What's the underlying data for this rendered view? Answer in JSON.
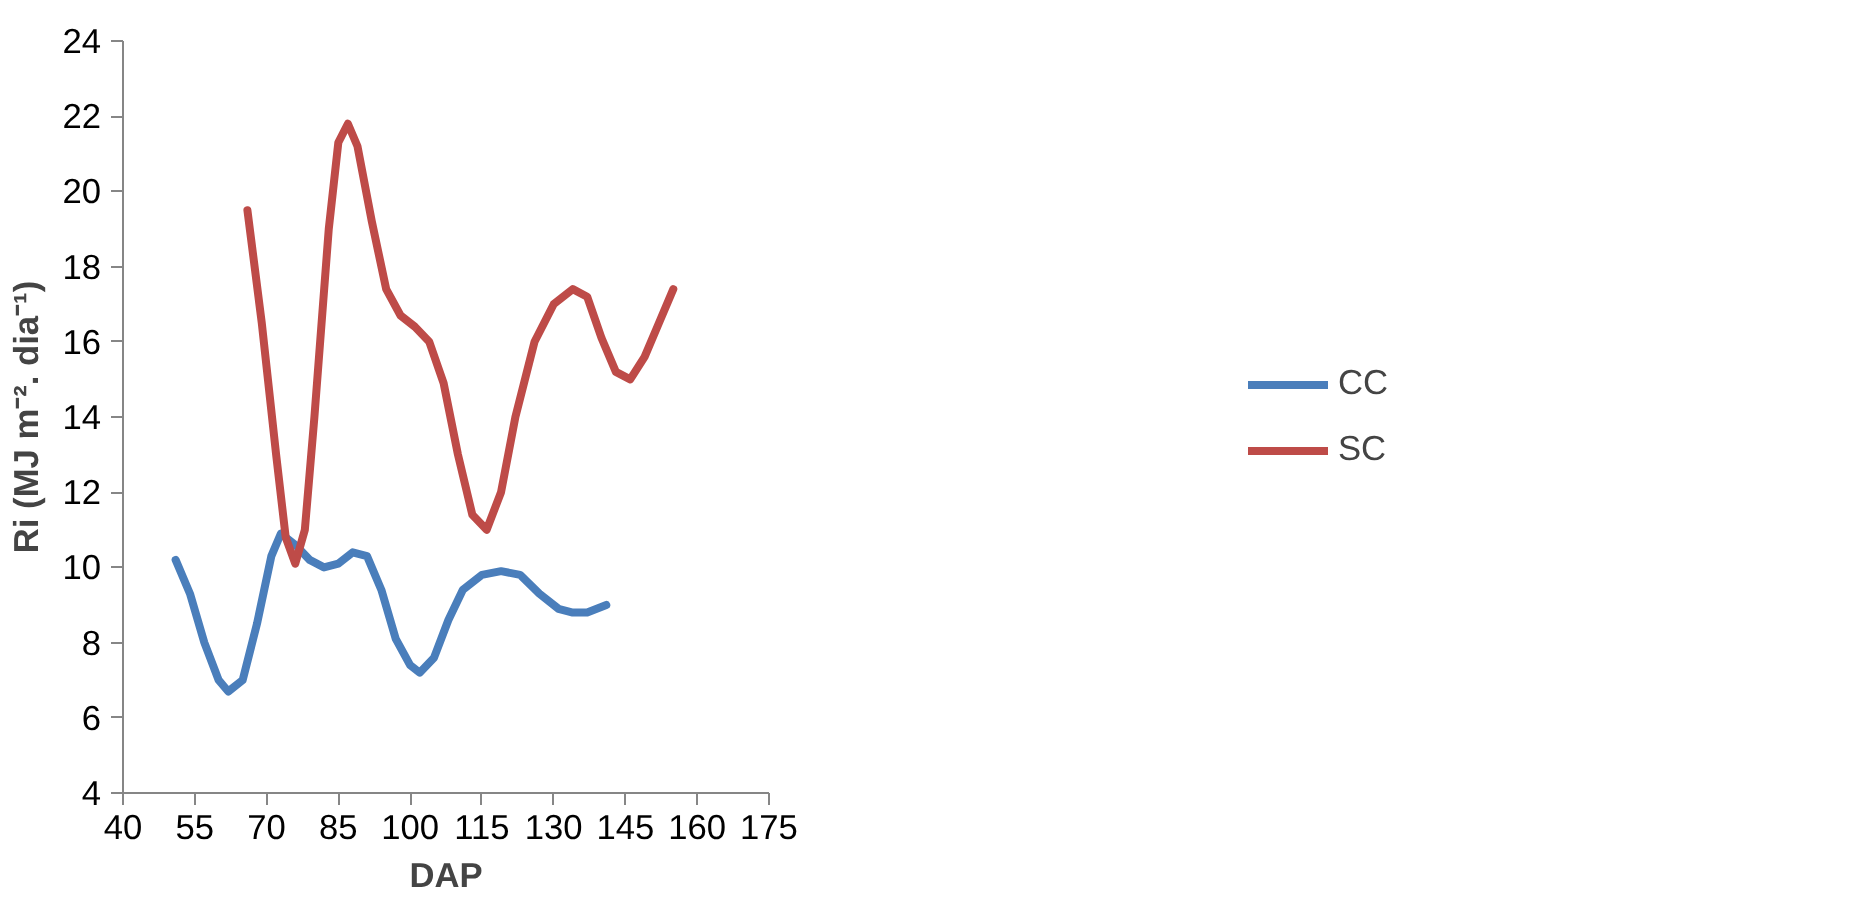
{
  "chart_data": {
    "type": "line",
    "xlabel": "DAP",
    "ylabel": "Ri (MJ m⁻². dia⁻¹)",
    "xlim": [
      40,
      175
    ],
    "xticks": [
      40,
      55,
      70,
      85,
      100,
      115,
      130,
      145,
      160,
      175
    ],
    "ylim": [
      4,
      24
    ],
    "yticks": [
      4,
      6,
      8,
      10,
      12,
      14,
      16,
      18,
      20,
      22,
      24
    ],
    "grid": false,
    "legend": "right",
    "line_style": "solid",
    "marker": "none",
    "series": [
      {
        "name": "CC",
        "color": "#4a7ebb",
        "x": [
          51,
          54,
          57,
          60,
          62,
          65,
          68,
          71,
          73,
          76,
          79,
          82,
          85,
          88,
          91,
          94,
          97,
          100,
          102,
          105,
          108,
          111,
          115,
          119,
          123,
          127,
          131,
          134,
          137,
          141
        ],
        "values": [
          10.2,
          9.3,
          8.0,
          7.0,
          6.7,
          7.0,
          8.5,
          10.3,
          10.9,
          10.6,
          10.2,
          10.0,
          10.1,
          10.4,
          10.3,
          9.4,
          8.1,
          7.4,
          7.2,
          7.6,
          8.6,
          9.4,
          9.8,
          9.9,
          9.8,
          9.3,
          8.9,
          8.8,
          8.8,
          9.0
        ]
      },
      {
        "name": "SC",
        "color": "#be4b48",
        "x": [
          66,
          69,
          72,
          74,
          76,
          78,
          80,
          83,
          85,
          87,
          89,
          92,
          95,
          98,
          101,
          104,
          107,
          110,
          113,
          116,
          119,
          122,
          126,
          130,
          134,
          137,
          140,
          143,
          146,
          149,
          152,
          155
        ],
        "values": [
          19.5,
          16.5,
          13.0,
          10.8,
          10.1,
          11.0,
          14.0,
          19.0,
          21.3,
          21.8,
          21.2,
          19.2,
          17.4,
          16.7,
          16.4,
          16.0,
          14.9,
          13.0,
          11.4,
          11.0,
          12.0,
          14.0,
          16.0,
          17.0,
          17.4,
          17.2,
          16.1,
          15.2,
          15.0,
          15.6,
          16.5,
          17.4
        ]
      }
    ]
  }
}
